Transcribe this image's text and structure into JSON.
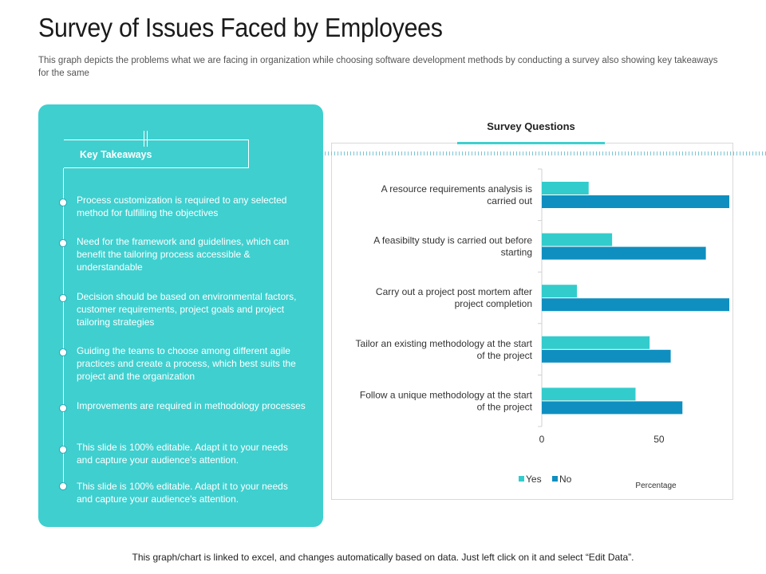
{
  "title": "Survey of Issues Faced by Employees",
  "subtitle": "This graph depicts the problems  what we are facing in organization while choosing software development methods by  conducting a survey  also showing key takeaways for the same",
  "takeaways": {
    "title": "Key Takeaways",
    "items": [
      "Process customization is required to any selected method for fulfilling the objectives",
      "Need for the framework  and guidelines, which can benefit the tailoring process accessible & understandable",
      "Decision should be based on environmental factors, customer requirements,  project goals and project tailoring strategies",
      "Guiding the teams to choose among different agile practices and create a process, which best suits the project and the organization",
      "Improvements  are required in methodology processes",
      "This slide is 100% editable. Adapt it to your needs and capture your audience's attention.",
      "This slide is 100% editable. Adapt it to your needs and capture your audience's attention."
    ]
  },
  "chart_header": "Survey Questions",
  "footer": "This graph/chart is linked to excel, and changes automatically based on data. Just left click on it and select “Edit Data”.",
  "colors": {
    "accent": "#3fcfcf",
    "yes": "#33cccc",
    "no": "#0e8fc0"
  },
  "chart_data": {
    "type": "bar",
    "orientation": "horizontal",
    "categories": [
      [
        "A resource requirements analysis is",
        "carried out"
      ],
      [
        "A feasibilty study is carried out before",
        "starting"
      ],
      [
        "Carry  out a project post mortem after",
        "project completion"
      ],
      [
        "Tailor an existing methodology at the start",
        "of the project"
      ],
      [
        "Follow a unique methodology at the start",
        "of the project"
      ]
    ],
    "series": [
      {
        "name": "Yes",
        "values": [
          20,
          30,
          15,
          46,
          40
        ]
      },
      {
        "name": "No",
        "values": [
          80,
          70,
          80,
          55,
          60
        ]
      }
    ],
    "xlim": [
      0,
      80
    ],
    "xticks": [
      0,
      50
    ],
    "xlabel": "Percentage",
    "legend": "bottom",
    "grid": false
  }
}
